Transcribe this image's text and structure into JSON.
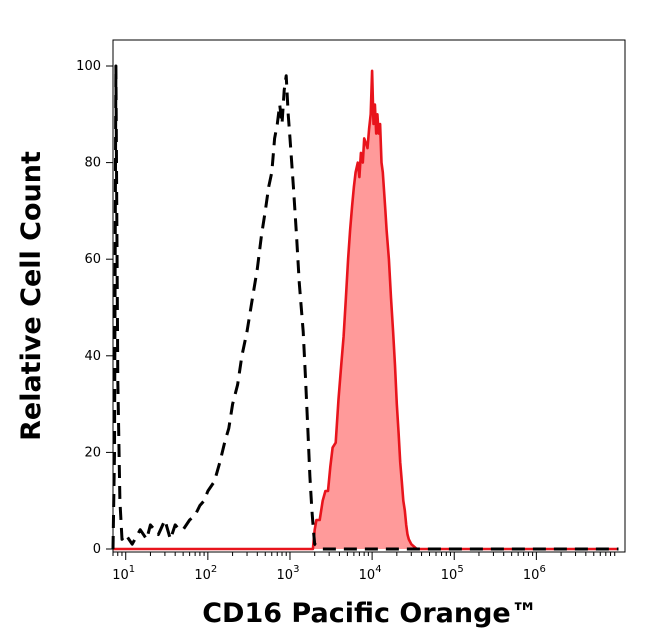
{
  "chart_data": {
    "type": "area",
    "title": "",
    "xlabel": "CD16 Pacific Orange™",
    "ylabel": "Relative Cell Count",
    "x_scale": "log",
    "xlim": [
      7,
      12000000
    ],
    "ylim": [
      0,
      100
    ],
    "x_ticks": [
      {
        "value": 10,
        "base": "10",
        "exp": "1"
      },
      {
        "value": 100,
        "base": "10",
        "exp": "2"
      },
      {
        "value": 1000,
        "base": "10",
        "exp": "3"
      },
      {
        "value": 10000,
        "base": "10",
        "exp": "4"
      },
      {
        "value": 100000,
        "base": "10",
        "exp": "5"
      },
      {
        "value": 1000000,
        "base": "10",
        "exp": "6"
      }
    ],
    "y_ticks": [
      0,
      20,
      40,
      60,
      80,
      100
    ],
    "grid": false,
    "legend": "none",
    "series": [
      {
        "style": "dashed",
        "color": "#000000",
        "fill": "none",
        "points": [
          [
            7,
            0
          ],
          [
            7.3,
            20
          ],
          [
            7.4,
            50
          ],
          [
            7.5,
            80
          ],
          [
            7.6,
            100
          ],
          [
            8,
            35
          ],
          [
            8.5,
            10
          ],
          [
            9,
            2
          ],
          [
            10,
            3
          ],
          [
            12,
            1
          ],
          [
            15,
            4
          ],
          [
            18,
            2
          ],
          [
            20,
            5
          ],
          [
            25,
            3
          ],
          [
            30,
            6
          ],
          [
            35,
            2
          ],
          [
            40,
            5
          ],
          [
            45,
            4
          ],
          [
            50,
            4
          ],
          [
            60,
            6
          ],
          [
            70,
            7
          ],
          [
            80,
            9
          ],
          [
            90,
            10
          ],
          [
            100,
            12
          ],
          [
            120,
            14
          ],
          [
            140,
            18
          ],
          [
            160,
            22
          ],
          [
            180,
            25
          ],
          [
            200,
            30
          ],
          [
            230,
            34
          ],
          [
            260,
            40
          ],
          [
            300,
            45
          ],
          [
            350,
            52
          ],
          [
            400,
            58
          ],
          [
            450,
            65
          ],
          [
            500,
            70
          ],
          [
            550,
            75
          ],
          [
            600,
            78
          ],
          [
            650,
            85
          ],
          [
            700,
            88
          ],
          [
            750,
            92
          ],
          [
            800,
            88
          ],
          [
            850,
            95
          ],
          [
            900,
            98
          ],
          [
            950,
            90
          ],
          [
            1000,
            85
          ],
          [
            1100,
            75
          ],
          [
            1200,
            65
          ],
          [
            1300,
            55
          ],
          [
            1450,
            45
          ],
          [
            1550,
            35
          ],
          [
            1650,
            25
          ],
          [
            1750,
            15
          ],
          [
            1850,
            8
          ],
          [
            1950,
            3
          ],
          [
            2000,
            1
          ],
          [
            2500,
            0
          ],
          [
            10000000,
            0
          ]
        ]
      },
      {
        "style": "solid",
        "color": "#e8141c",
        "fill": "#ff9a9a",
        "points": [
          [
            7,
            0
          ],
          [
            1900,
            0
          ],
          [
            2000,
            4
          ],
          [
            2100,
            6
          ],
          [
            2300,
            6
          ],
          [
            2500,
            10
          ],
          [
            2700,
            12
          ],
          [
            2900,
            12
          ],
          [
            3100,
            17
          ],
          [
            3300,
            21
          ],
          [
            3600,
            22
          ],
          [
            3900,
            31
          ],
          [
            4200,
            38
          ],
          [
            4500,
            44
          ],
          [
            4800,
            52
          ],
          [
            5100,
            60
          ],
          [
            5400,
            66
          ],
          [
            5700,
            71
          ],
          [
            6000,
            75
          ],
          [
            6300,
            78
          ],
          [
            6700,
            80
          ],
          [
            7000,
            77
          ],
          [
            7300,
            82
          ],
          [
            7700,
            80
          ],
          [
            8000,
            85
          ],
          [
            8400,
            84
          ],
          [
            8800,
            83
          ],
          [
            9200,
            87
          ],
          [
            9600,
            90
          ],
          [
            10000,
            99
          ],
          [
            10400,
            88
          ],
          [
            10800,
            92
          ],
          [
            11200,
            86
          ],
          [
            11600,
            90
          ],
          [
            12000,
            86
          ],
          [
            12500,
            88
          ],
          [
            13000,
            80
          ],
          [
            13500,
            78
          ],
          [
            14000,
            74
          ],
          [
            14500,
            70
          ],
          [
            15000,
            66
          ],
          [
            16000,
            60
          ],
          [
            17000,
            52
          ],
          [
            18000,
            45
          ],
          [
            19000,
            38
          ],
          [
            20000,
            30
          ],
          [
            21000,
            24
          ],
          [
            22000,
            18
          ],
          [
            23000,
            14
          ],
          [
            24000,
            10
          ],
          [
            25000,
            8
          ],
          [
            26000,
            5
          ],
          [
            27000,
            3
          ],
          [
            28000,
            2
          ],
          [
            30000,
            1
          ],
          [
            35000,
            0
          ],
          [
            10000000,
            0
          ]
        ]
      }
    ]
  }
}
